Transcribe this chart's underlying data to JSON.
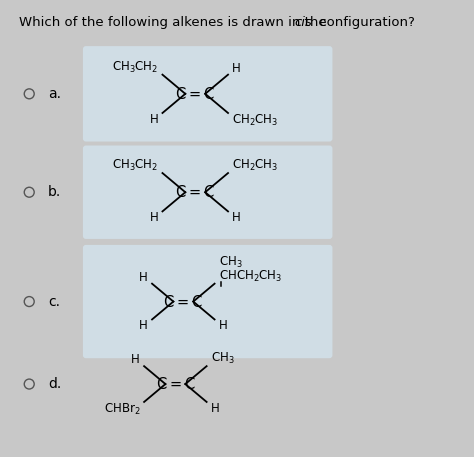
{
  "bg_color": "#c8c8c8",
  "box_color": "#d0dde5",
  "text_color": "#111111",
  "title_parts": [
    "Which of the following alkenes is drawn in the ",
    "cis",
    " configuration?"
  ],
  "options": {
    "a": {
      "ul": "CH₃CH₂",
      "ur": "H",
      "ll": "H",
      "lr": "CH₂CH₃",
      "ul_raw": "CH$_3$CH$_2$",
      "ur_raw": "H",
      "ll_raw": "H",
      "lr_raw": "CH$_2$CH$_3$"
    },
    "b": {
      "ul_raw": "CH$_3$CH$_2$",
      "ur_raw": "CH$_2$CH$_3$",
      "ll_raw": "H",
      "lr_raw": "H"
    },
    "c": {
      "ul_raw": "H",
      "ur_raw": "CHCH$_2$CH$_3$",
      "ll_raw": "H",
      "lr_raw": "H",
      "ur_top": "CH$_3$"
    },
    "d": {
      "ul_raw": "H",
      "ur_raw": "CH$_3$",
      "ll_raw": "CHBr$_2$",
      "lr_raw": "H"
    }
  }
}
